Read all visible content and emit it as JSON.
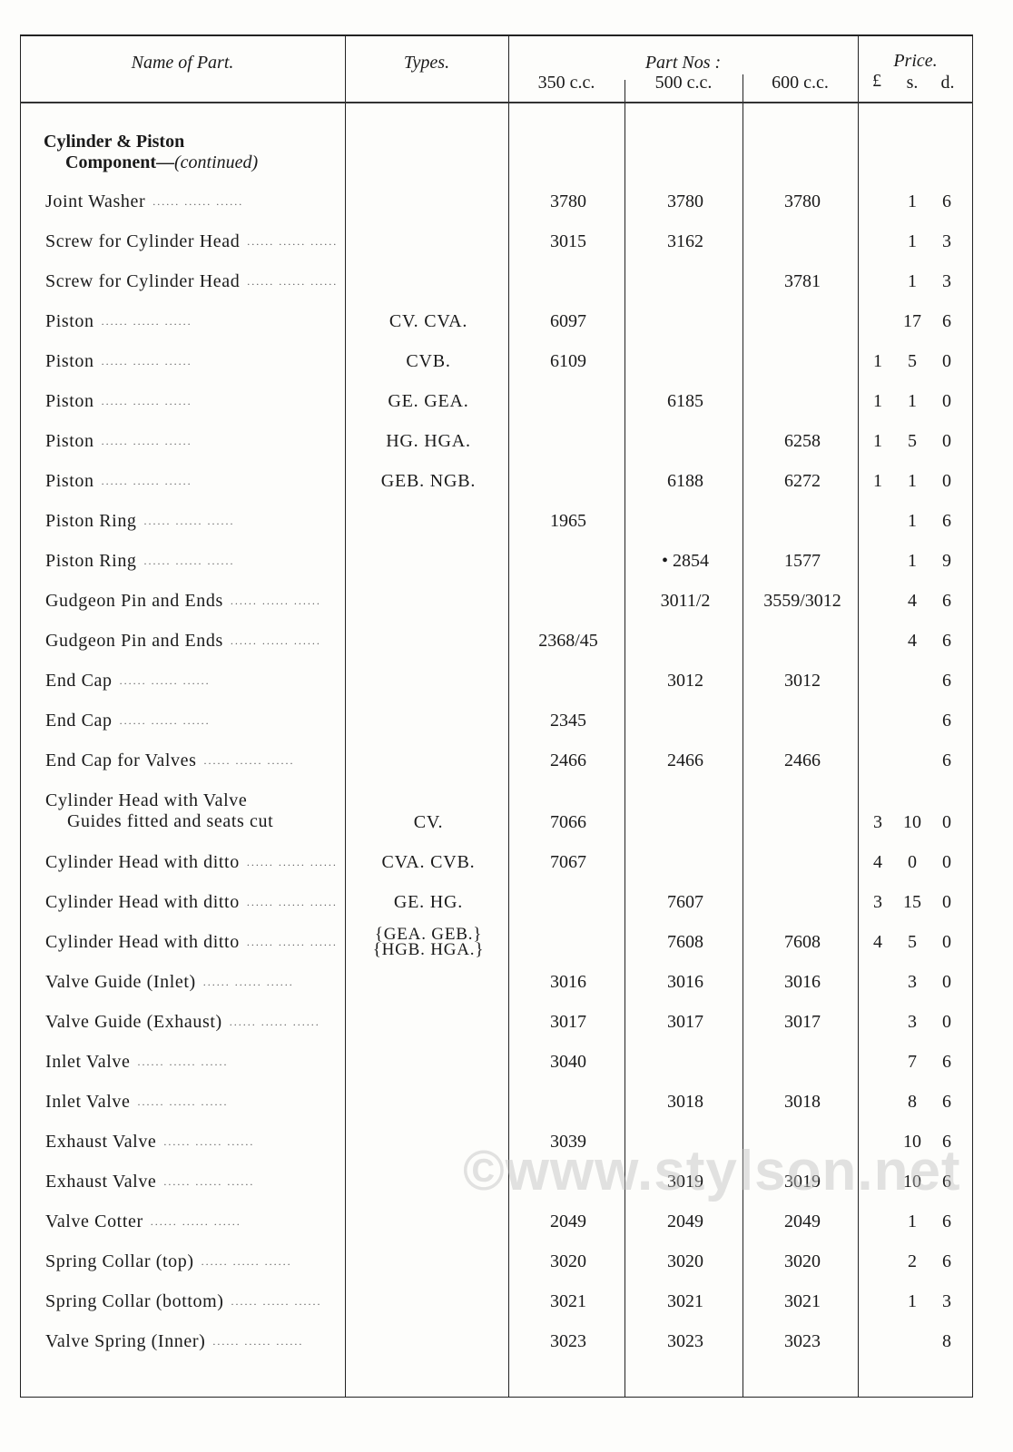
{
  "header": {
    "name_of_part": "Name of Part.",
    "types": "Types.",
    "part_nos": "Part Nos :",
    "cc350": "350 c.c.",
    "cc500": "500 c.c.",
    "cc600": "600 c.c.",
    "price": "Price.",
    "pounds": "£",
    "shillings": "s.",
    "pence": "d."
  },
  "section": {
    "title_line1": "Cylinder & Piston",
    "title_line2": "Component—",
    "continued": "(continued)"
  },
  "rows": [
    {
      "name": "Joint Washer",
      "types": "",
      "cc350": "3780",
      "cc500": "3780",
      "cc600": "3780",
      "l": "",
      "s": "1",
      "d": "6"
    },
    {
      "name": "Screw for Cylinder Head",
      "types": "",
      "cc350": "3015",
      "cc500": "3162",
      "cc600": "",
      "l": "",
      "s": "1",
      "d": "3"
    },
    {
      "name": "Screw for Cylinder Head",
      "types": "",
      "cc350": "",
      "cc500": "",
      "cc600": "3781",
      "l": "",
      "s": "1",
      "d": "3"
    },
    {
      "name": "Piston",
      "types": "CV. CVA.",
      "cc350": "6097",
      "cc500": "",
      "cc600": "",
      "l": "",
      "s": "17",
      "d": "6"
    },
    {
      "name": "Piston",
      "types": "CVB.",
      "cc350": "6109",
      "cc500": "",
      "cc600": "",
      "l": "1",
      "s": "5",
      "d": "0"
    },
    {
      "name": "Piston",
      "types": "GE. GEA.",
      "cc350": "",
      "cc500": "6185",
      "cc600": "",
      "l": "1",
      "s": "1",
      "d": "0"
    },
    {
      "name": "Piston",
      "types": "HG. HGA.",
      "cc350": "",
      "cc500": "",
      "cc600": "6258",
      "l": "1",
      "s": "5",
      "d": "0"
    },
    {
      "name": "Piston",
      "types": "GEB. NGB.",
      "cc350": "",
      "cc500": "6188",
      "cc600": "6272",
      "l": "1",
      "s": "1",
      "d": "0"
    },
    {
      "name": "Piston Ring",
      "types": "",
      "cc350": "1965",
      "cc500": "",
      "cc600": "",
      "l": "",
      "s": "1",
      "d": "6"
    },
    {
      "name": "Piston Ring",
      "types": "",
      "cc350": "",
      "cc500": "• 2854",
      "cc600": "1577",
      "l": "",
      "s": "1",
      "d": "9"
    },
    {
      "name": "Gudgeon Pin and Ends",
      "types": "",
      "cc350": "",
      "cc500": "3011/2",
      "cc600": "3559/3012",
      "l": "",
      "s": "4",
      "d": "6"
    },
    {
      "name": "Gudgeon Pin and Ends",
      "types": "",
      "cc350": "2368/45",
      "cc500": "",
      "cc600": "",
      "l": "",
      "s": "4",
      "d": "6"
    },
    {
      "name": "End Cap",
      "types": "",
      "cc350": "",
      "cc500": "3012",
      "cc600": "3012",
      "l": "",
      "s": "",
      "d": "6"
    },
    {
      "name": "End Cap",
      "types": "",
      "cc350": "2345",
      "cc500": "",
      "cc600": "",
      "l": "",
      "s": "",
      "d": "6"
    },
    {
      "name": "End Cap for Valves",
      "types": "",
      "cc350": "2466",
      "cc500": "2466",
      "cc600": "2466",
      "l": "",
      "s": "",
      "d": "6"
    },
    {
      "name": "Cylinder   Head   with   Valve",
      "name2": "Guides fitted and seats cut",
      "types": "CV.",
      "cc350": "7066",
      "cc500": "",
      "cc600": "",
      "l": "3",
      "s": "10",
      "d": "0"
    },
    {
      "name": "Cylinder Head with ditto",
      "types": "CVA. CVB.",
      "cc350": "7067",
      "cc500": "",
      "cc600": "",
      "l": "4",
      "s": "0",
      "d": "0"
    },
    {
      "name": "Cylinder Head with ditto",
      "types": "GE. HG.",
      "cc350": "",
      "cc500": "7607",
      "cc600": "",
      "l": "3",
      "s": "15",
      "d": "0"
    },
    {
      "name": "Cylinder Head with ditto",
      "types": "{GEA.  GEB.}",
      "types2": "{HGB.  HGA.}",
      "cc350": "",
      "cc500": "7608",
      "cc600": "7608",
      "l": "4",
      "s": "5",
      "d": "0"
    },
    {
      "name": "Valve Guide (Inlet)",
      "types": "",
      "cc350": "3016",
      "cc500": "3016",
      "cc600": "3016",
      "l": "",
      "s": "3",
      "d": "0"
    },
    {
      "name": "Valve Guide (Exhaust)",
      "types": "",
      "cc350": "3017",
      "cc500": "3017",
      "cc600": "3017",
      "l": "",
      "s": "3",
      "d": "0"
    },
    {
      "name": "Inlet Valve",
      "types": "",
      "cc350": "3040",
      "cc500": "",
      "cc600": "",
      "l": "",
      "s": "7",
      "d": "6"
    },
    {
      "name": "Inlet Valve",
      "types": "",
      "cc350": "",
      "cc500": "3018",
      "cc600": "3018",
      "l": "",
      "s": "8",
      "d": "6"
    },
    {
      "name": "Exhaust Valve",
      "types": "",
      "cc350": "3039",
      "cc500": "",
      "cc600": "",
      "l": "",
      "s": "10",
      "d": "6"
    },
    {
      "name": "Exhaust Valve",
      "types": "",
      "cc350": "",
      "cc500": "3019",
      "cc600": "3019",
      "l": "",
      "s": "10",
      "d": "6"
    },
    {
      "name": "Valve Cotter",
      "types": "",
      "cc350": "2049",
      "cc500": "2049",
      "cc600": "2049",
      "l": "",
      "s": "1",
      "d": "6"
    },
    {
      "name": "Spring Collar (top)",
      "types": "",
      "cc350": "3020",
      "cc500": "3020",
      "cc600": "3020",
      "l": "",
      "s": "2",
      "d": "6"
    },
    {
      "name": "Spring Collar (bottom)",
      "types": "",
      "cc350": "3021",
      "cc500": "3021",
      "cc600": "3021",
      "l": "",
      "s": "1",
      "d": "3"
    },
    {
      "name": "Valve Spring (Inner)",
      "types": "",
      "cc350": "3023",
      "cc500": "3023",
      "cc600": "3023",
      "l": "",
      "s": "",
      "d": "8"
    }
  ],
  "leader": "......    ......    ......",
  "watermark": "©www.stylson.net"
}
